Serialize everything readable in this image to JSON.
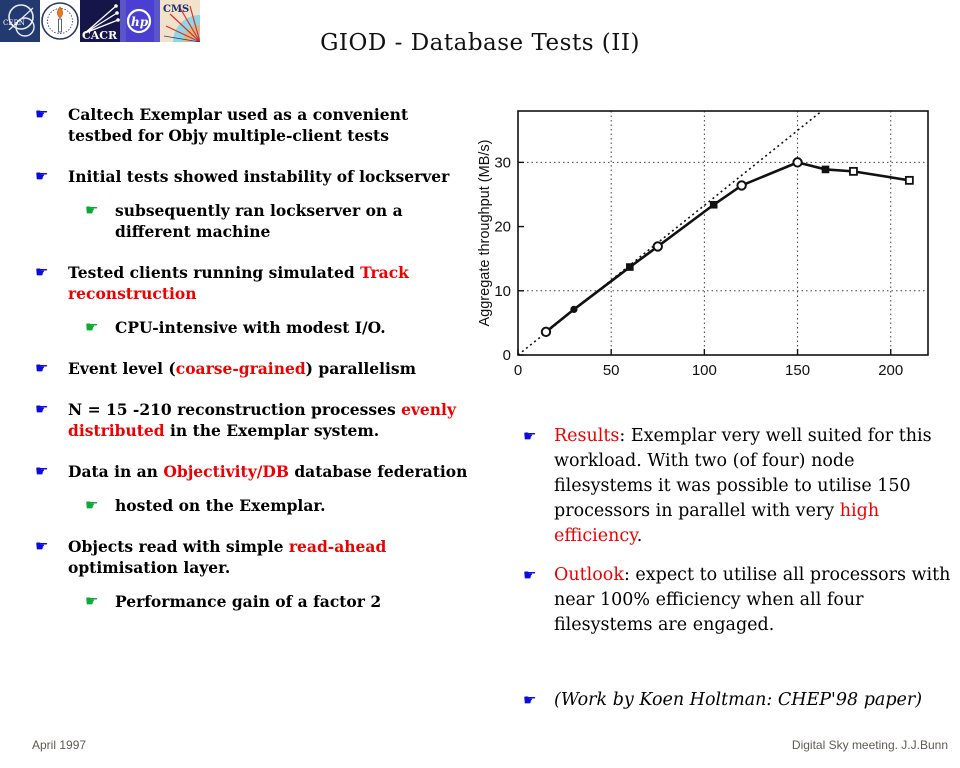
{
  "slide": {
    "title": "GIOD - Database Tests (II)",
    "footer_left": "April 1997",
    "footer_right": "Digital Sky meeting. J.J.Bunn"
  },
  "logos": {
    "cern": "CERN",
    "cacr": "CACR",
    "hp": "hp",
    "cms": "CMS"
  },
  "colors": {
    "bullet_hand_blue": "#0b0bdd",
    "bullet_hand_green": "#0caa33",
    "highlight_red": "#ee0000",
    "text_black": "#000000",
    "footer_gray": "#5e5a52"
  },
  "bullets_left": [
    {
      "level": 1,
      "segments": [
        {
          "text": "Caltech Exemplar used as a convenient testbed for Objy multiple-client tests"
        }
      ]
    },
    {
      "level": 1,
      "segments": [
        {
          "text": "Initial tests showed instability of lockserver"
        }
      ]
    },
    {
      "level": 2,
      "segments": [
        {
          "text": "subsequently ran lockserver on a different machine"
        }
      ]
    },
    {
      "level": 1,
      "segments": [
        {
          "text": "Tested clients running simulated "
        },
        {
          "text": "Track reconstruction",
          "red": true
        }
      ]
    },
    {
      "level": 2,
      "segments": [
        {
          "text": "CPU-intensive with modest I/O."
        }
      ]
    },
    {
      "level": 1,
      "segments": [
        {
          "text": "Event level ("
        },
        {
          "text": "coarse-grained",
          "red": true
        },
        {
          "text": ") parallelism"
        }
      ]
    },
    {
      "level": 1,
      "segments": [
        {
          "text": "N = 15 -210 reconstruction processes "
        },
        {
          "text": "evenly distributed",
          "red": true
        },
        {
          "text": " in the Exemplar system."
        }
      ]
    },
    {
      "level": 1,
      "segments": [
        {
          "text": "Data in an "
        },
        {
          "text": "Objectivity/DB",
          "red": true
        },
        {
          "text": " database federation"
        }
      ]
    },
    {
      "level": 2,
      "segments": [
        {
          "text": "hosted on the Exemplar."
        }
      ]
    },
    {
      "level": 1,
      "segments": [
        {
          "text": "Objects read with simple "
        },
        {
          "text": "read-ahead",
          "red": true
        },
        {
          "text": " optimisation layer."
        }
      ]
    },
    {
      "level": 2,
      "segments": [
        {
          "text": "Performance gain of a factor 2"
        }
      ]
    }
  ],
  "bullets_right": [
    {
      "segments": [
        {
          "text": "Results",
          "red": true
        },
        {
          "text": ": Exemplar very well suited for this workload. With two (of four) node filesystems it was possible to utilise 150 processors in parallel with very "
        },
        {
          "text": "high efficiency",
          "red": true
        },
        {
          "text": "."
        }
      ]
    },
    {
      "segments": [
        {
          "text": "Outlook",
          "red": true
        },
        {
          "text": ": expect to utilise all processors with near 100% efficiency when all four filesystems are engaged."
        }
      ]
    },
    {
      "workby": true,
      "segments": [
        {
          "text": "(Work by Koen Holtman: CHEP'98 paper)",
          "italic": true
        }
      ]
    }
  ],
  "chart_data": {
    "type": "line",
    "title": "",
    "xlabel": "",
    "ylabel": "Aggregate throughput (MB/s)",
    "xlim": [
      0,
      220
    ],
    "ylim": [
      0,
      38
    ],
    "xticks": [
      0,
      50,
      100,
      150,
      200
    ],
    "yticks": [
      0,
      10,
      20,
      30
    ],
    "grid_x": [
      50,
      100,
      150,
      200
    ],
    "grid_y": [
      10,
      30
    ],
    "grid": "dotted",
    "legend": "none",
    "series": [
      {
        "name": "ideal-linear-scaling",
        "style": "dotted",
        "x": [
          0,
          163
        ],
        "y": [
          0,
          38
        ],
        "markers": null
      },
      {
        "name": "measured-throughput",
        "style": "solid",
        "x": [
          15,
          30,
          60,
          75,
          105,
          120,
          150,
          165,
          180,
          210
        ],
        "y": [
          3.6,
          7.1,
          13.7,
          16.9,
          23.4,
          26.4,
          30.0,
          28.9,
          28.6,
          27.2
        ],
        "markers": [
          "circle-open",
          "circle-filled",
          "square-filled",
          "circle-open",
          "square-filled",
          "circle-open",
          "circle-open",
          "square-filled",
          "square-open",
          "square-open"
        ]
      }
    ]
  }
}
